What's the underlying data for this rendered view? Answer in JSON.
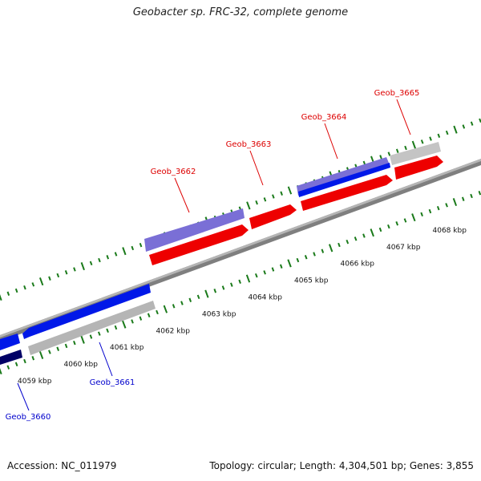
{
  "title": "Geobacter sp. FRC-32, complete genome",
  "accession": "Accession: NC_011979",
  "topology": "Topology: circular; Length: 4,304,501 bp; Genes: 3,855",
  "colors": {
    "forward_gene": "#ee0000",
    "forward_gene_alt": "#7a6fd6",
    "reverse_gene": "#0000e0",
    "other_gene": "#c0c0c0",
    "backbone": "#808080",
    "tick": "#1a7a1a",
    "gene_label_red": "#dd0000",
    "gene_label_blue": "#0000cc"
  },
  "scale_labels": [
    "4059 kbp",
    "4060 kbp",
    "4061 kbp",
    "4062 kbp",
    "4063 kbp",
    "4064 kbp",
    "4065 kbp",
    "4066 kbp",
    "4067 kbp",
    "4068 kbp"
  ],
  "gene_labels": [
    {
      "name": "Geob_3660",
      "color": "blue"
    },
    {
      "name": "Geob_3661",
      "color": "blue"
    },
    {
      "name": "Geob_3662",
      "color": "red"
    },
    {
      "name": "Geob_3663",
      "color": "red"
    },
    {
      "name": "Geob_3664",
      "color": "red"
    },
    {
      "name": "Geob_3665",
      "color": "red"
    }
  ]
}
